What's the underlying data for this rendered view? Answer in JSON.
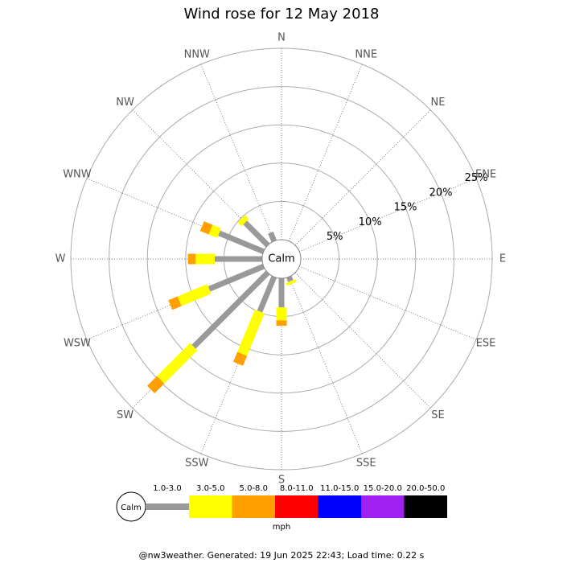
{
  "chart_data": {
    "type": "windrose",
    "title": "Wind rose for 12 May 2018",
    "categories": [
      "N",
      "NNE",
      "NE",
      "ENE",
      "E",
      "ESE",
      "SE",
      "SSE",
      "S",
      "SSW",
      "SW",
      "WSW",
      "W",
      "WNW",
      "NW",
      "NNW"
    ],
    "calm_label": "Calm",
    "rlim": [
      0,
      25
    ],
    "rticks": [
      {
        "value": 5,
        "label": "5%"
      },
      {
        "value": 10,
        "label": "10%"
      },
      {
        "value": 15,
        "label": "15%"
      },
      {
        "value": 20,
        "label": "20%"
      },
      {
        "value": 25,
        "label": "25%"
      }
    ],
    "series": [
      {
        "name": "1.0-3.0",
        "color": "#999999",
        "values": [
          0,
          0,
          0,
          0,
          0,
          0,
          0,
          0.6,
          3.8,
          4.9,
          13.7,
          7.7,
          6.2,
          6.3,
          4.2,
          1.2
        ]
      },
      {
        "name": "3.0-5.0",
        "color": "#ffff00",
        "values": [
          0,
          0,
          0,
          0,
          0,
          0,
          0,
          0.4,
          1.7,
          6.0,
          6.1,
          4.2,
          2.5,
          1.2,
          0.7,
          0
        ]
      },
      {
        "name": "5.0-8.0",
        "color": "#ff9f00",
        "values": [
          0,
          0,
          0,
          0,
          0,
          0,
          0,
          0,
          0.7,
          1.4,
          1.8,
          1.3,
          1.0,
          1.2,
          0,
          0
        ]
      },
      {
        "name": "8.0-11.0",
        "color": "#ff0000",
        "values": [
          0,
          0,
          0,
          0,
          0,
          0,
          0,
          0,
          0,
          0,
          0,
          0,
          0,
          0,
          0,
          0
        ]
      },
      {
        "name": "11.0-15.0",
        "color": "#0000ff",
        "values": [
          0,
          0,
          0,
          0,
          0,
          0,
          0,
          0,
          0,
          0,
          0,
          0,
          0,
          0,
          0,
          0
        ]
      },
      {
        "name": "15.0-20.0",
        "color": "#a020f0",
        "values": [
          0,
          0,
          0,
          0,
          0,
          0,
          0,
          0,
          0,
          0,
          0,
          0,
          0,
          0,
          0,
          0
        ]
      },
      {
        "name": "20.0-50.0",
        "color": "#000000",
        "values": [
          0,
          0,
          0,
          0,
          0,
          0,
          0,
          0,
          0,
          0,
          0,
          0,
          0,
          0,
          0,
          0
        ]
      }
    ],
    "legend_unit": "mph",
    "footer": "@nw3weather. Generated: 19 Jun 2025 22:43; Load time: 0.22 s"
  }
}
